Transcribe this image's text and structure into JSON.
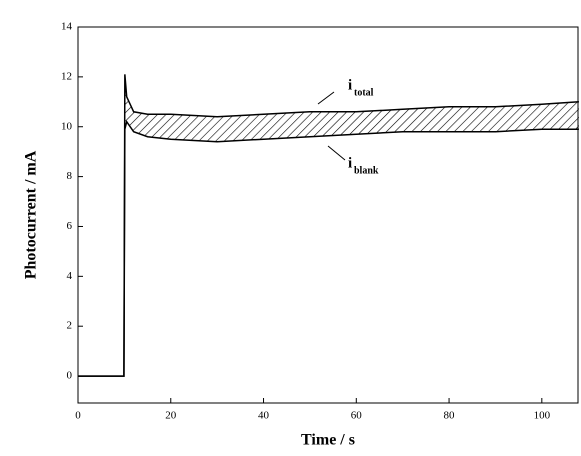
{
  "chart_data": {
    "type": "line",
    "x_label": "Time / s",
    "y_label": "Photocurrent / mA",
    "x": [
      0,
      9.9,
      10.1,
      10.5,
      12,
      15,
      20,
      30,
      40,
      50,
      60,
      70,
      80,
      90,
      100,
      108
    ],
    "series": [
      {
        "color": "#000000",
        "values": [
          0,
          0,
          12.1,
          11.2,
          10.6,
          10.5,
          10.5,
          10.4,
          10.5,
          10.6,
          10.6,
          10.7,
          10.8,
          10.8,
          10.9,
          11.0
        ]
      },
      {
        "color": "#000000",
        "values": [
          0,
          0,
          9.9,
          10.2,
          9.8,
          9.6,
          9.5,
          9.4,
          9.5,
          9.6,
          9.7,
          9.8,
          9.8,
          9.8,
          9.9,
          9.9
        ]
      }
    ],
    "annotations": [
      {
        "text": "i",
        "subscript": "total"
      },
      {
        "text": "i",
        "subscript": "blank"
      }
    ],
    "xlim": [
      0,
      107.8
    ],
    "xticks": [
      0,
      20,
      40,
      60,
      80,
      100
    ],
    "ylim": [
      -1.08,
      14
    ],
    "yticks": [
      0,
      2,
      4,
      6,
      8,
      10,
      12,
      14
    ],
    "grid": false
  }
}
